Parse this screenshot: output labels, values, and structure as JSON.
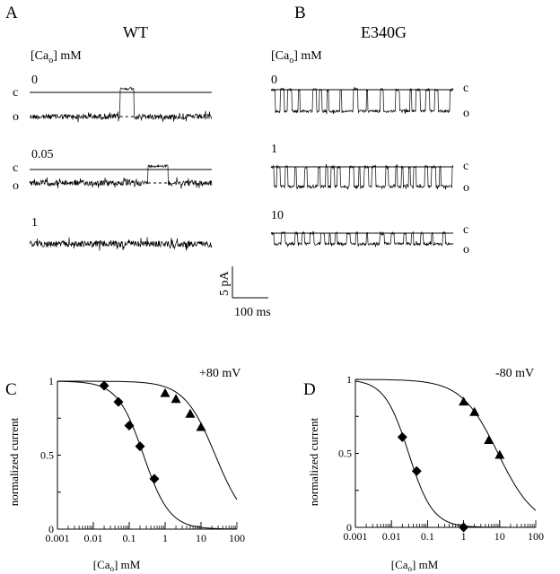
{
  "panels": {
    "A": {
      "letter": "A",
      "title": "WT",
      "conc_label": "[Ca",
      "conc_sub": "o",
      "conc_unit": "] mM",
      "traces": [
        {
          "conc": "0",
          "state_labels": [
            "c",
            "o"
          ],
          "closures_ms": [
            [
              252,
              290
            ]
          ],
          "type": "single"
        },
        {
          "conc": "0.05",
          "state_labels": [
            "c",
            "o"
          ],
          "closures_ms": [
            [
              330,
              385
            ]
          ],
          "type": "single"
        },
        {
          "conc": "1",
          "state_labels": [],
          "closures_ms": [],
          "type": "flicker-weak"
        }
      ]
    },
    "B": {
      "letter": "B",
      "title": "E340G",
      "conc_label": "[Ca",
      "conc_sub": "o",
      "conc_unit": "] mM",
      "traces": [
        {
          "conc": "0",
          "state_labels": [
            "c",
            "o"
          ],
          "type": "flicker"
        },
        {
          "conc": "1",
          "state_labels": [
            "c",
            "o"
          ],
          "type": "flicker"
        },
        {
          "conc": "10",
          "state_labels": [
            "c",
            "o"
          ],
          "type": "flicker-small"
        }
      ]
    },
    "C": {
      "letter": "C"
    },
    "D": {
      "letter": "D"
    }
  },
  "scale_bar": {
    "current": "5 pA",
    "time": "100 ms"
  },
  "chart_data": [
    {
      "panel": "C",
      "type": "scatter",
      "title": "+80 mV",
      "xlabel": "[Ca",
      "xlabel_sub": "o",
      "xlabel_unit": "] mM",
      "ylabel": "normalized current",
      "xscale": "log",
      "xlim": [
        0.001,
        100
      ],
      "ylim": [
        0,
        1
      ],
      "xticks": [
        "0.001",
        "0.01",
        "0.1",
        "1",
        "10",
        "100"
      ],
      "yticks": [
        "0",
        "0.5",
        "1"
      ],
      "series": [
        {
          "name": "WT",
          "marker": "diamond",
          "x": [
            0.02,
            0.05,
            0.1,
            0.2,
            0.5
          ],
          "y": [
            0.97,
            0.86,
            0.7,
            0.56,
            0.34
          ],
          "fit": {
            "K": 0.25,
            "n": 1.2
          }
        },
        {
          "name": "E340G",
          "marker": "triangle",
          "x": [
            1,
            2,
            5,
            10
          ],
          "y": [
            0.92,
            0.88,
            0.78,
            0.69
          ],
          "fit": {
            "K": 25,
            "n": 1.0
          }
        }
      ]
    },
    {
      "panel": "D",
      "type": "scatter",
      "title": "-80 mV",
      "xlabel": "[Ca",
      "xlabel_sub": "o",
      "xlabel_unit": "] mM",
      "ylabel": "normalized current",
      "xscale": "log",
      "xlim": [
        0.001,
        100
      ],
      "ylim": [
        0,
        1
      ],
      "xticks": [
        "0.001",
        "0.01",
        "0.1",
        "1",
        "10",
        "100"
      ],
      "yticks": [
        "0",
        "0.5",
        "1"
      ],
      "series": [
        {
          "name": "WT",
          "marker": "diamond",
          "x": [
            0.02,
            0.05,
            1
          ],
          "y": [
            0.61,
            0.38,
            0.0
          ],
          "fit": {
            "K": 0.03,
            "n": 1.3
          }
        },
        {
          "name": "E340G",
          "marker": "triangle",
          "x": [
            1,
            2,
            5,
            10
          ],
          "y": [
            0.85,
            0.78,
            0.59,
            0.49
          ],
          "fit": {
            "K": 9,
            "n": 0.85
          }
        }
      ]
    }
  ]
}
